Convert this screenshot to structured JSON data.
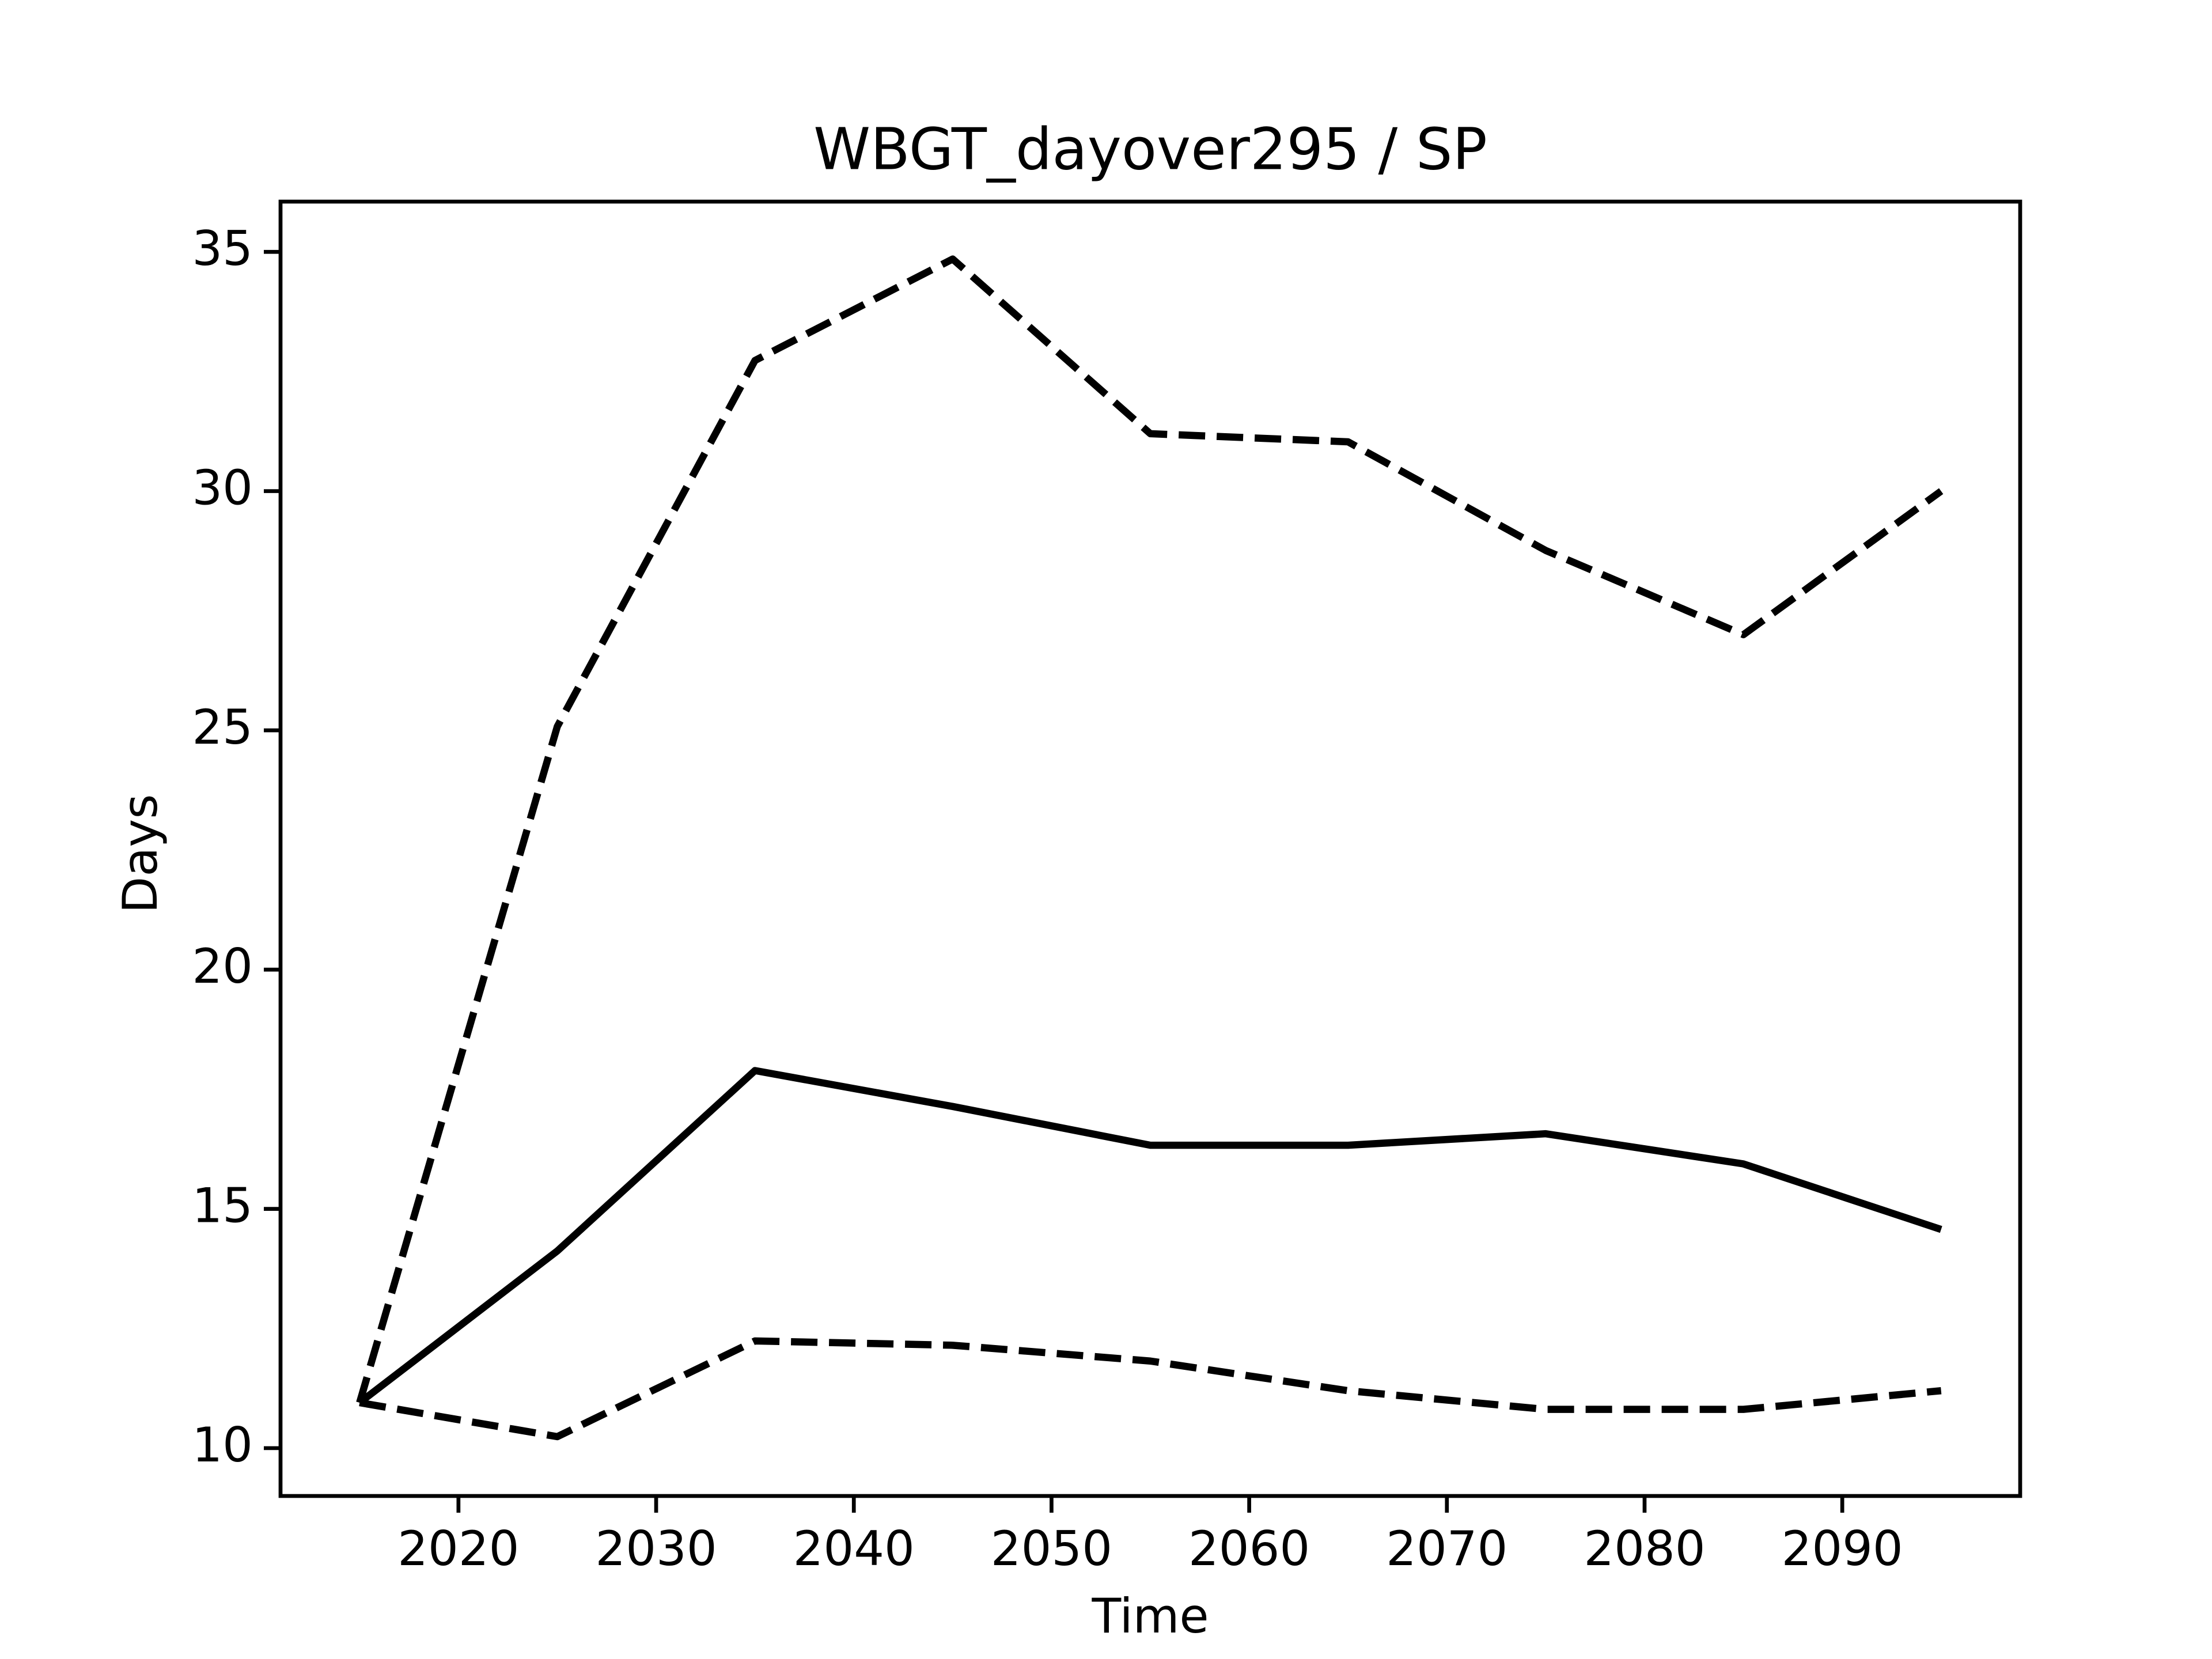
{
  "chart_data": {
    "type": "line",
    "title": "WBGT_dayover295 / SP",
    "xlabel": "Time",
    "ylabel": "Days",
    "x": [
      2015,
      2025,
      2035,
      2045,
      2055,
      2065,
      2075,
      2085,
      2095
    ],
    "series": [
      {
        "color": "#000000",
        "linestyle": "dashed",
        "values": [
          10.95,
          25.08,
          32.73,
          34.85,
          31.2,
          31.03,
          28.76,
          27.0,
          30.0
        ]
      },
      {
        "color": "#000000",
        "linestyle": "solid",
        "values": [
          10.95,
          14.12,
          17.89,
          17.14,
          16.33,
          16.33,
          16.57,
          15.94,
          14.57
        ]
      },
      {
        "color": "#000000",
        "linestyle": "dashed",
        "values": [
          10.95,
          10.24,
          12.24,
          12.15,
          11.82,
          11.2,
          10.81,
          10.81,
          11.2
        ]
      }
    ],
    "xlim": [
      2011,
      2099
    ],
    "xticks": [
      2020,
      2030,
      2040,
      2050,
      2060,
      2070,
      2080,
      2090
    ],
    "ylim": [
      9.0,
      36.05
    ],
    "yticks": [
      10,
      15,
      20,
      25,
      30,
      35
    ],
    "grid": false
  }
}
